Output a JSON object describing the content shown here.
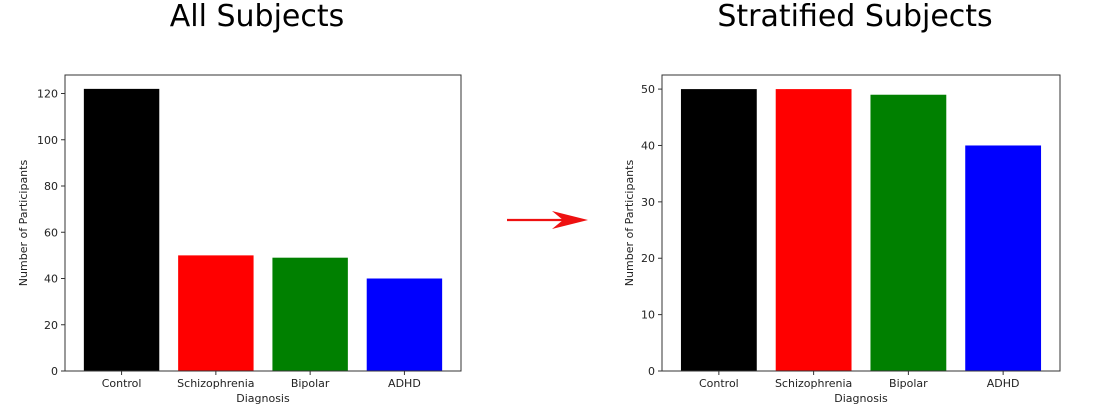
{
  "chart_data": [
    {
      "type": "bar",
      "title": "All Subjects",
      "xlabel": "Diagnosis",
      "ylabel": "Number of Participants",
      "categories": [
        "Control",
        "Schizophrenia",
        "Bipolar",
        "ADHD"
      ],
      "values": [
        122,
        50,
        49,
        40
      ],
      "colors": [
        "#000000",
        "#ff0000",
        "#008000",
        "#0000ff"
      ],
      "ylim": [
        0,
        128
      ],
      "yticks": [
        0,
        20,
        40,
        60,
        80,
        100,
        120
      ],
      "grid": false
    },
    {
      "type": "bar",
      "title": "Stratified Subjects",
      "xlabel": "Diagnosis",
      "ylabel": "Number of Participants",
      "categories": [
        "Control",
        "Schizophrenia",
        "Bipolar",
        "ADHD"
      ],
      "values": [
        50,
        50,
        49,
        40
      ],
      "colors": [
        "#000000",
        "#ff0000",
        "#008000",
        "#0000ff"
      ],
      "ylim": [
        0,
        52.5
      ],
      "yticks": [
        0,
        10,
        20,
        30,
        40,
        50
      ],
      "grid": false
    }
  ],
  "arrow": {
    "color": "#ee1111",
    "icon": "arrow-right-icon"
  }
}
